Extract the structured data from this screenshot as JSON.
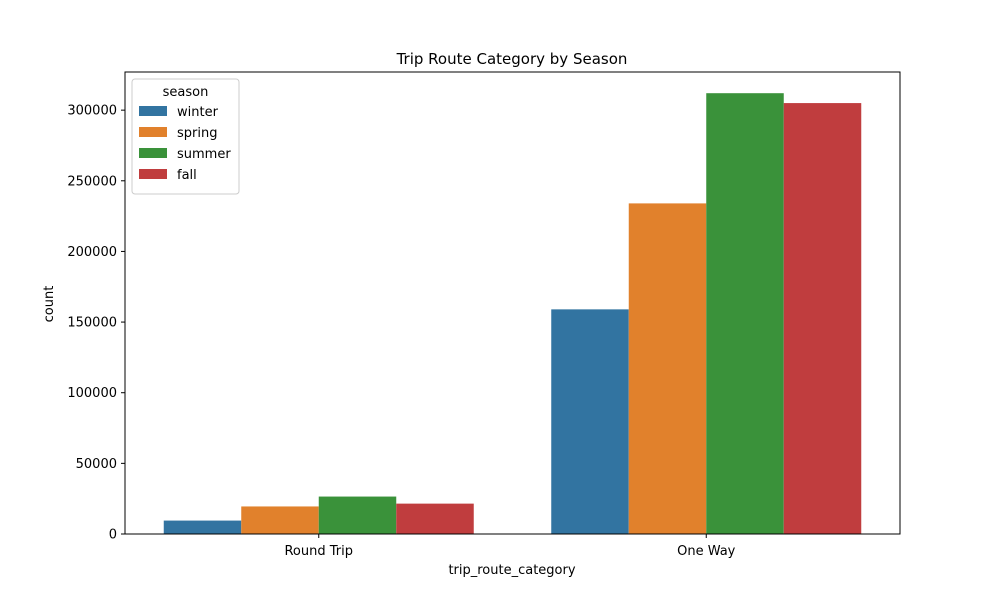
{
  "chart_data": {
    "type": "bar",
    "title": "Trip Route Category by Season",
    "xlabel": "trip_route_category",
    "ylabel": "count",
    "categories": [
      "Round Trip",
      "One Way"
    ],
    "series": [
      {
        "name": "winter",
        "color": "#3274a1",
        "values": [
          9500,
          159000
        ]
      },
      {
        "name": "spring",
        "color": "#e1812c",
        "values": [
          19500,
          234000
        ]
      },
      {
        "name": "summer",
        "color": "#3a923a",
        "values": [
          26500,
          312000
        ]
      },
      {
        "name": "fall",
        "color": "#c03d3e",
        "values": [
          21500,
          305000
        ]
      }
    ],
    "ylim": [
      0,
      327000
    ],
    "yticks": [
      0,
      50000,
      100000,
      150000,
      200000,
      250000,
      300000
    ],
    "ytick_labels": [
      "0",
      "50000",
      "100000",
      "150000",
      "200000",
      "250000",
      "300000"
    ],
    "grid": false,
    "legend": {
      "title": "season",
      "placement": "top-left"
    }
  }
}
